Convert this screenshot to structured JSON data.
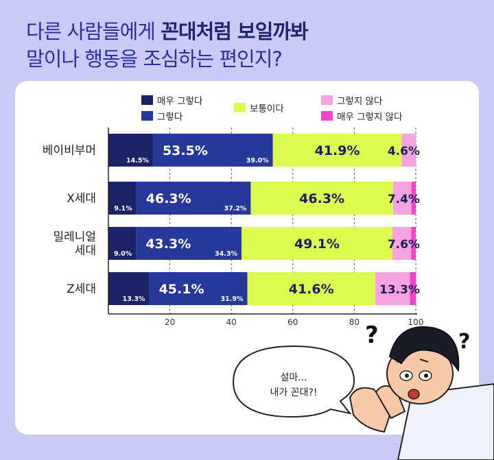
{
  "title": {
    "line1_prefix": "다른 사람들에게 ",
    "line1_highlight": "꼰대처럼 보일까봐",
    "line2": "말이나 행동을 조심하는 편인지?"
  },
  "legend": [
    {
      "label": "매우 그렇다",
      "color": "#1a2366"
    },
    {
      "label": "그렇다",
      "color": "#26389a"
    },
    {
      "label": "보통이다",
      "color": "#dcfb4e"
    },
    {
      "label": "그렇지 않다",
      "color": "#f7a3e0"
    },
    {
      "label": "매우 그렇지 않다",
      "color": "#ef45c9"
    }
  ],
  "chart_data": {
    "type": "bar",
    "orientation": "horizontal",
    "stacked": true,
    "categories": [
      "베이비부머",
      "X세대",
      "밀레니얼\n세대",
      "Z세대"
    ],
    "series": [
      {
        "name": "매우 그렇다",
        "values": [
          14.5,
          9.1,
          9.0,
          13.3
        ]
      },
      {
        "name": "그렇다",
        "values": [
          39.0,
          37.2,
          34.3,
          31.9
        ]
      },
      {
        "name": "보통이다",
        "values": [
          41.9,
          46.3,
          49.1,
          41.6
        ]
      },
      {
        "name": "그렇지 않다",
        "values": [
          4.6,
          6.0,
          6.1,
          11.3
        ]
      },
      {
        "name": "매우 그렇지 않다",
        "values": [
          0.0,
          1.4,
          1.5,
          2.0
        ]
      }
    ],
    "labels": {
      "very_agree": [
        "14.5%",
        "9.1%",
        "9.0%",
        "13.3%"
      ],
      "agree": [
        "39.0%",
        "37.2%",
        "34.3%",
        "31.9%"
      ],
      "agree_total": [
        "53.5%",
        "46.3%",
        "43.3%",
        "45.1%"
      ],
      "neutral": [
        "41.9%",
        "46.3%",
        "49.1%",
        "41.6%"
      ],
      "disagree_total": [
        "4.6%",
        "7.4%",
        "7.6%",
        "13.3%"
      ]
    },
    "xticks": [
      "20",
      "40",
      "60",
      "80",
      "100"
    ],
    "xlim": [
      0,
      100
    ],
    "grid": "dashed vertical",
    "legend_position": "top"
  },
  "bubble": {
    "line1": "설마...",
    "line2": "내가 꼰대?!"
  },
  "marks": [
    "?",
    "?"
  ]
}
